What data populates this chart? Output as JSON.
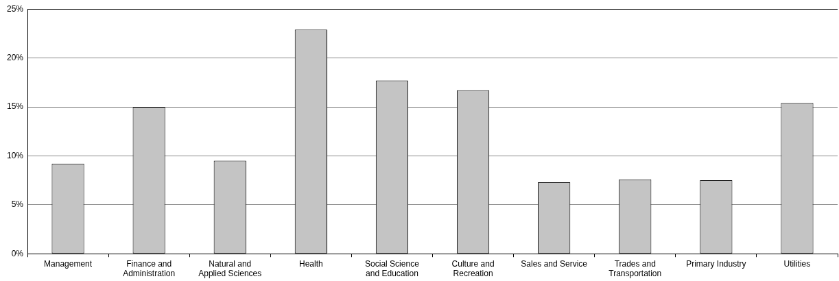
{
  "chart_data": {
    "type": "bar",
    "categories": [
      "Management",
      "Finance and Administration",
      "Natural and Applied Sciences",
      "Health",
      "Social Science and Education",
      "Culture and Recreation",
      "Sales and Service",
      "Trades and Transportation",
      "Primary Industry",
      "Utilities"
    ],
    "values": [
      9.2,
      15.0,
      9.5,
      22.9,
      17.7,
      16.7,
      7.3,
      7.6,
      7.5,
      15.4
    ],
    "color": "#c4c4c4",
    "ylim": [
      0,
      25
    ],
    "yticks": [
      {
        "value": 0,
        "label": "0%"
      },
      {
        "value": 5,
        "label": "5%"
      },
      {
        "value": 10,
        "label": "10%"
      },
      {
        "value": 15,
        "label": "15%"
      },
      {
        "value": 20,
        "label": "20%"
      },
      {
        "value": 25,
        "label": "25%"
      }
    ],
    "grid": "y",
    "legend": false
  }
}
